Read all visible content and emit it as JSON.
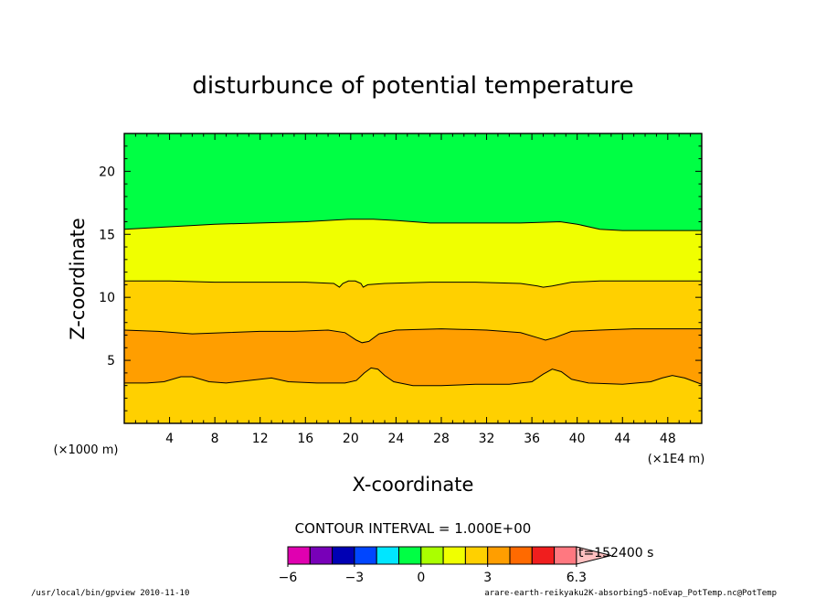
{
  "chart_data": {
    "type": "heatmap",
    "title": "disturbunce of potential temperature",
    "xlabel": "X-coordinate",
    "ylabel": "Z-coordinate",
    "x_unit_note": "(×1E4 m)",
    "y_unit_note": "(×1000 m)",
    "xlim": [
      0,
      51
    ],
    "ylim": [
      0,
      23
    ],
    "x_ticks": [
      4,
      8,
      12,
      16,
      20,
      24,
      28,
      32,
      36,
      40,
      44,
      48
    ],
    "y_ticks": [
      5,
      10,
      15,
      20
    ],
    "contour_interval_text": "CONTOUR INTERVAL = 1.000E+00",
    "time_text": "t=152400 s",
    "colorbar": {
      "levels": [
        -6,
        -5,
        -4,
        -3,
        -2,
        -1,
        0,
        1,
        2,
        3,
        4,
        5,
        6,
        6.3
      ],
      "labels": [
        "−6",
        "−3",
        "0",
        "3",
        "6.3"
      ],
      "label_values": [
        -6,
        -3,
        0,
        3,
        6.3
      ],
      "colors": [
        "#e000b0",
        "#7800b8",
        "#0000b4",
        "#0046ff",
        "#00e6ff",
        "#00ff44",
        "#aaff00",
        "#f0ff00",
        "#ffd000",
        "#ff9e00",
        "#ff6a00",
        "#f01e1e",
        "#ff7880",
        "#ffc0c0"
      ]
    },
    "bands": [
      {
        "color": "#ff9e00",
        "from": "contour_low",
        "to": "contour_mid",
        "range": "1 to 2"
      },
      {
        "color": "#ffd000",
        "from": "bottom",
        "to": "contour_low",
        "range": "0 to 1"
      },
      {
        "color": "#ffd000",
        "from": "contour_mid",
        "to": "contour_upper",
        "range": "0 to 1"
      },
      {
        "color": "#f0ff00",
        "from": "contour_upper",
        "to": "contour_top",
        "range": "-1 to 0"
      },
      {
        "color": "#00ff44",
        "from": "contour_top",
        "to": "top",
        "range": "-2 to -1"
      }
    ],
    "contours": {
      "contour_low": [
        [
          0,
          3.2
        ],
        [
          2,
          3.2
        ],
        [
          3.5,
          3.3
        ],
        [
          5,
          3.7
        ],
        [
          6,
          3.7
        ],
        [
          7.5,
          3.3
        ],
        [
          9,
          3.2
        ],
        [
          11,
          3.4
        ],
        [
          13,
          3.6
        ],
        [
          14.5,
          3.3
        ],
        [
          17,
          3.2
        ],
        [
          19.5,
          3.2
        ],
        [
          20.5,
          3.4
        ],
        [
          21.2,
          4
        ],
        [
          21.8,
          4.4
        ],
        [
          22.4,
          4.3
        ],
        [
          23,
          3.8
        ],
        [
          23.8,
          3.3
        ],
        [
          25.5,
          3
        ],
        [
          28,
          3
        ],
        [
          31,
          3.1
        ],
        [
          34,
          3.1
        ],
        [
          36,
          3.3
        ],
        [
          37,
          3.9
        ],
        [
          37.8,
          4.3
        ],
        [
          38.6,
          4.1
        ],
        [
          39.5,
          3.5
        ],
        [
          41,
          3.2
        ],
        [
          44,
          3.1
        ],
        [
          46.5,
          3.3
        ],
        [
          47.5,
          3.6
        ],
        [
          48.4,
          3.8
        ],
        [
          49.5,
          3.6
        ],
        [
          51,
          3.1
        ]
      ],
      "contour_mid": [
        [
          0,
          7.4
        ],
        [
          3,
          7.3
        ],
        [
          6,
          7.1
        ],
        [
          9,
          7.2
        ],
        [
          12,
          7.3
        ],
        [
          15,
          7.3
        ],
        [
          18,
          7.4
        ],
        [
          19.5,
          7.2
        ],
        [
          20.5,
          6.6
        ],
        [
          21,
          6.4
        ],
        [
          21.6,
          6.5
        ],
        [
          22.5,
          7.1
        ],
        [
          24,
          7.4
        ],
        [
          28,
          7.5
        ],
        [
          32,
          7.4
        ],
        [
          35,
          7.2
        ],
        [
          36.5,
          6.8
        ],
        [
          37.2,
          6.6
        ],
        [
          38,
          6.8
        ],
        [
          39.5,
          7.3
        ],
        [
          42,
          7.4
        ],
        [
          45,
          7.5
        ],
        [
          48,
          7.5
        ],
        [
          51,
          7.5
        ]
      ],
      "contour_upper": [
        [
          0,
          11.3
        ],
        [
          4,
          11.3
        ],
        [
          8,
          11.2
        ],
        [
          12,
          11.2
        ],
        [
          16,
          11.2
        ],
        [
          18.5,
          11.1
        ],
        [
          19,
          10.8
        ],
        [
          19.3,
          11.1
        ],
        [
          19.8,
          11.3
        ],
        [
          20.4,
          11.3
        ],
        [
          20.9,
          11.1
        ],
        [
          21.1,
          10.8
        ],
        [
          21.5,
          11
        ],
        [
          23,
          11.1
        ],
        [
          27,
          11.2
        ],
        [
          31,
          11.2
        ],
        [
          35,
          11.1
        ],
        [
          36.5,
          10.9
        ],
        [
          37,
          10.8
        ],
        [
          37.8,
          10.9
        ],
        [
          39.5,
          11.2
        ],
        [
          42,
          11.3
        ],
        [
          46,
          11.3
        ],
        [
          51,
          11.3
        ]
      ],
      "contour_top": [
        [
          0,
          15.4
        ],
        [
          4,
          15.6
        ],
        [
          8,
          15.8
        ],
        [
          12,
          15.9
        ],
        [
          16,
          16
        ],
        [
          20,
          16.2
        ],
        [
          22,
          16.2
        ],
        [
          24,
          16.1
        ],
        [
          27,
          15.9
        ],
        [
          31,
          15.9
        ],
        [
          35,
          15.9
        ],
        [
          38.5,
          16
        ],
        [
          40,
          15.8
        ],
        [
          42,
          15.4
        ],
        [
          44,
          15.3
        ],
        [
          48,
          15.3
        ],
        [
          51,
          15.3
        ]
      ]
    }
  },
  "footer": {
    "left_text": "/usr/local/bin/gpview  2010-11-10",
    "right_text": "arare-earth-reikyaku2K-absorbing5-noEvap_PotTemp.nc@PotTemp"
  }
}
